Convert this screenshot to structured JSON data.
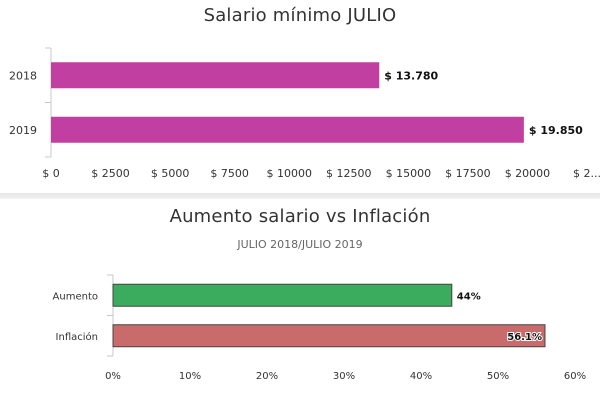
{
  "chart_data": [
    {
      "type": "bar",
      "orientation": "horizontal",
      "title": "Salario mínimo JULIO",
      "subtitle": "",
      "categories": [
        "2018",
        "2019"
      ],
      "values": [
        13780,
        19850
      ],
      "data_labels": [
        "$ 13.780",
        "$ 19.850"
      ],
      "x_ticks": [
        "$ 0",
        "$ 2500",
        "$ 5000",
        "$ 7500",
        "$ 10000",
        "$ 12500",
        "$ 15000",
        "$ 17500",
        "$ 20000",
        "$ 2..."
      ],
      "xlim": [
        0,
        22500
      ],
      "grid": false,
      "legend": "none",
      "bar_color": "#c13fa0"
    },
    {
      "type": "bar",
      "orientation": "horizontal",
      "title": "Aumento salario vs Inflación",
      "subtitle": "JULIO 2018/JULIO 2019",
      "categories": [
        "Aumento",
        "Inflación"
      ],
      "values": [
        44,
        56.1
      ],
      "data_labels": [
        "44%",
        "56.1%"
      ],
      "x_ticks": [
        "0%",
        "10%",
        "20%",
        "30%",
        "40%",
        "50%",
        "60%"
      ],
      "xlim": [
        0,
        60
      ],
      "grid": false,
      "legend": "none",
      "bar_colors": [
        "#3bac5e",
        "#c96b6b"
      ]
    }
  ]
}
